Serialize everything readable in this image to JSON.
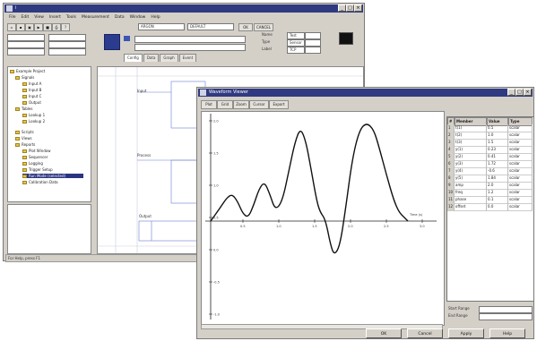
{
  "back_window": {
    "title": "ⅰ",
    "menu": [
      "File",
      "Edit",
      "View",
      "Insert",
      "Tools",
      "Measurement",
      "Data",
      "Window",
      "Help"
    ],
    "toolbar": {
      "combo_left": "ARGON",
      "combo_right": "DEFAULT",
      "button_1": "OK",
      "button_2": "CANCEL"
    },
    "fields": {
      "name_label": "Name",
      "name_value": "Test",
      "type_label": "Type",
      "type_value": "Sensor",
      "lab_label": "Label",
      "lab_value": "TCP"
    },
    "tabs": [
      "Config",
      "Data",
      "Graph",
      "Event"
    ],
    "tree": {
      "items": [
        "Example Project",
        "Signals",
        "Input A",
        "Input B",
        "Input C",
        "Output",
        "Tables",
        "Lookup 1",
        "Lookup 2",
        "Scripts",
        "Views",
        "Reports",
        "Plot Window",
        "Sequencer",
        "Logging",
        "Trigger Setup",
        "Run Mode (selected)",
        "Calibration Data"
      ],
      "selected_index": 16
    },
    "canvas_labels": {
      "block_a": "Input",
      "block_b": "Process",
      "block_c": "Output"
    },
    "status": "For Help, press F1"
  },
  "front_window": {
    "title": "Waveform Viewer",
    "toolbar_buttons": [
      "Plot",
      "Grid",
      "Zoom",
      "Cursor",
      "Export"
    ],
    "plot": {
      "x_label": "Time (s)",
      "x_ticks": [
        "0.5",
        "1.0",
        "1.5",
        "2.0",
        "2.5",
        "3.0"
      ],
      "y_ticks": [
        "2.0",
        "1.5",
        "1.0",
        "0.5",
        "0.0",
        "-0.5",
        "-1.0"
      ]
    },
    "table": {
      "headers": [
        "#",
        "Member",
        "Value",
        "Type"
      ],
      "rows": [
        [
          "1",
          "t(1)",
          "0.5",
          "scalar"
        ],
        [
          "2",
          "t(2)",
          "1.0",
          "scalar"
        ],
        [
          "3",
          "t(3)",
          "1.5",
          "scalar"
        ],
        [
          "4",
          "y(1)",
          "0.23",
          "scalar"
        ],
        [
          "5",
          "y(2)",
          "0.41",
          "scalar"
        ],
        [
          "6",
          "y(3)",
          "1.72",
          "scalar"
        ],
        [
          "7",
          "y(4)",
          "-0.6",
          "scalar"
        ],
        [
          "8",
          "y(5)",
          "1.84",
          "scalar"
        ],
        [
          "9",
          "amp",
          "2.0",
          "scalar"
        ],
        [
          "10",
          "freq",
          "1.2",
          "scalar"
        ],
        [
          "11",
          "phase",
          "0.1",
          "scalar"
        ],
        [
          "12",
          "offset",
          "0.0",
          "scalar"
        ]
      ]
    },
    "side_fields": {
      "start_label": "Start Range",
      "end_label": "End Range"
    },
    "buttons": {
      "ok": "OK",
      "cancel": "Cancel",
      "apply": "Apply",
      "help": "Help"
    }
  },
  "colors": {
    "titlebar": "#2f3a80",
    "window_face": "#d4d0c8",
    "curve": "#111111",
    "diagram_lines": "#6b7fd0"
  }
}
